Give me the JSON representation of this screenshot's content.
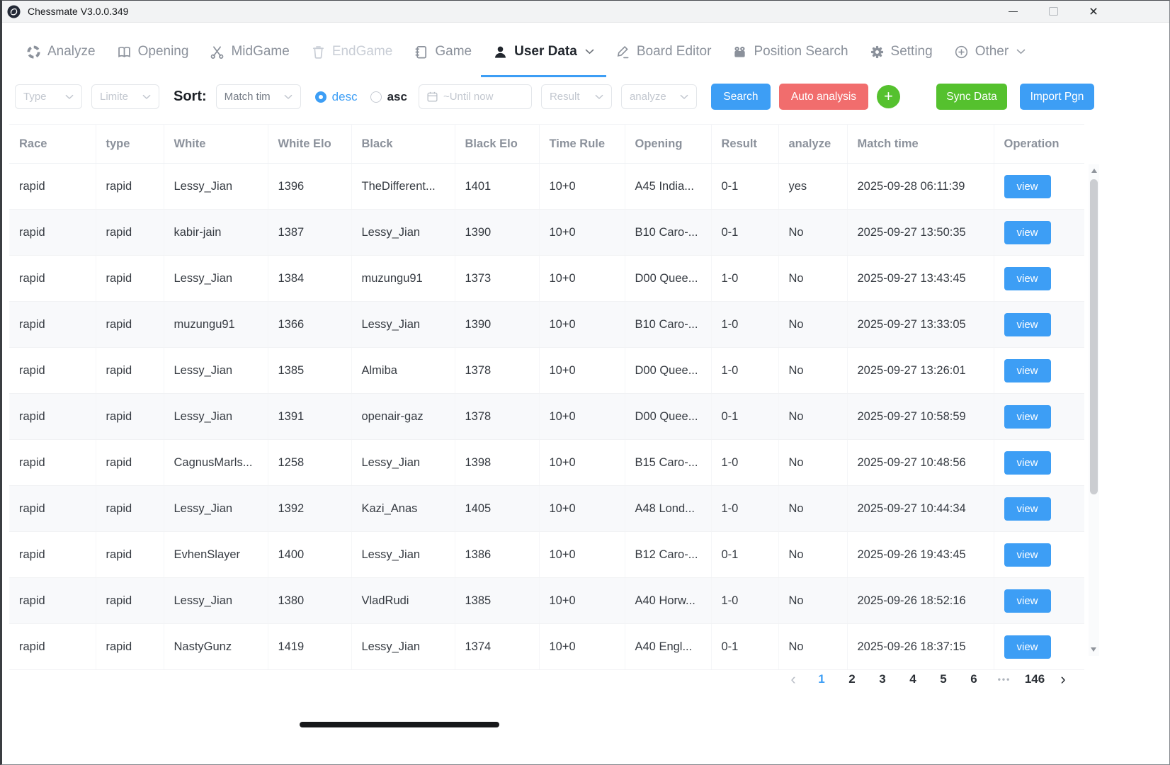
{
  "window": {
    "title": "Chessmate V3.0.0.349",
    "controls": {
      "minimize": "minimize",
      "maximize": "maximize",
      "close": "×"
    }
  },
  "nav": {
    "tabs": [
      {
        "label": "Analyze",
        "state": "normal"
      },
      {
        "label": "Opening",
        "state": "normal"
      },
      {
        "label": "MidGame",
        "state": "normal"
      },
      {
        "label": "EndGame",
        "state": "disabled"
      },
      {
        "label": "Game",
        "state": "normal"
      },
      {
        "label": "User Data",
        "state": "active"
      },
      {
        "label": "Board Editor",
        "state": "normal"
      },
      {
        "label": "Position Search",
        "state": "normal"
      },
      {
        "label": "Setting",
        "state": "normal"
      },
      {
        "label": "Other",
        "state": "normal"
      }
    ]
  },
  "filters": {
    "type_placeholder": "Type",
    "limited_placeholder": "Limite",
    "sort_label": "Sort:",
    "sort_field_value": "Match tim",
    "order_desc_label": "desc",
    "order_asc_label": "asc",
    "order_selected": "desc",
    "date_placeholder": "~Until now",
    "result_placeholder": "Result",
    "analyze_placeholder": "analyze",
    "search_button": "Search",
    "auto_analysis_button": "Auto analysis",
    "add_button": "+",
    "sync_button": "Sync Data",
    "import_button": "Import Pgn"
  },
  "table": {
    "columns": [
      "Race",
      "type",
      "White",
      "White Elo",
      "Black",
      "Black Elo",
      "Time Rule",
      "Opening",
      "Result",
      "analyze",
      "Match time",
      "Operation"
    ],
    "view_label": "view",
    "rows": [
      {
        "race": "rapid",
        "type": "rapid",
        "white": "Lessy_Jian",
        "whiteElo": "1396",
        "black": "TheDifferent...",
        "blackElo": "1401",
        "timeRule": "10+0",
        "opening": "A45 India...",
        "result": "0-1",
        "analyze": "yes",
        "matchTime": "2025-09-28 06:11:39"
      },
      {
        "race": "rapid",
        "type": "rapid",
        "white": "kabir-jain",
        "whiteElo": "1387",
        "black": "Lessy_Jian",
        "blackElo": "1390",
        "timeRule": "10+0",
        "opening": "B10 Caro-...",
        "result": "0-1",
        "analyze": "No",
        "matchTime": "2025-09-27 13:50:35"
      },
      {
        "race": "rapid",
        "type": "rapid",
        "white": "Lessy_Jian",
        "whiteElo": "1384",
        "black": "muzungu91",
        "blackElo": "1373",
        "timeRule": "10+0",
        "opening": "D00 Quee...",
        "result": "1-0",
        "analyze": "No",
        "matchTime": "2025-09-27 13:43:45"
      },
      {
        "race": "rapid",
        "type": "rapid",
        "white": "muzungu91",
        "whiteElo": "1366",
        "black": "Lessy_Jian",
        "blackElo": "1390",
        "timeRule": "10+0",
        "opening": "B10 Caro-...",
        "result": "1-0",
        "analyze": "No",
        "matchTime": "2025-09-27 13:33:05"
      },
      {
        "race": "rapid",
        "type": "rapid",
        "white": "Lessy_Jian",
        "whiteElo": "1385",
        "black": "Almiba",
        "blackElo": "1378",
        "timeRule": "10+0",
        "opening": "D00 Quee...",
        "result": "1-0",
        "analyze": "No",
        "matchTime": "2025-09-27 13:26:01"
      },
      {
        "race": "rapid",
        "type": "rapid",
        "white": "Lessy_Jian",
        "whiteElo": "1391",
        "black": "openair-gaz",
        "blackElo": "1378",
        "timeRule": "10+0",
        "opening": "D00 Quee...",
        "result": "0-1",
        "analyze": "No",
        "matchTime": "2025-09-27 10:58:59"
      },
      {
        "race": "rapid",
        "type": "rapid",
        "white": "CagnusMarls...",
        "whiteElo": "1258",
        "black": "Lessy_Jian",
        "blackElo": "1398",
        "timeRule": "10+0",
        "opening": "B15 Caro-...",
        "result": "1-0",
        "analyze": "No",
        "matchTime": "2025-09-27 10:48:56"
      },
      {
        "race": "rapid",
        "type": "rapid",
        "white": "Lessy_Jian",
        "whiteElo": "1392",
        "black": "Kazi_Anas",
        "blackElo": "1405",
        "timeRule": "10+0",
        "opening": "A48 Lond...",
        "result": "1-0",
        "analyze": "No",
        "matchTime": "2025-09-27 10:44:34"
      },
      {
        "race": "rapid",
        "type": "rapid",
        "white": "EvhenSlayer",
        "whiteElo": "1400",
        "black": "Lessy_Jian",
        "blackElo": "1386",
        "timeRule": "10+0",
        "opening": "B12 Caro-...",
        "result": "0-1",
        "analyze": "No",
        "matchTime": "2025-09-26 19:43:45"
      },
      {
        "race": "rapid",
        "type": "rapid",
        "white": "Lessy_Jian",
        "whiteElo": "1380",
        "black": "VladRudi",
        "blackElo": "1385",
        "timeRule": "10+0",
        "opening": "A40 Horw...",
        "result": "1-0",
        "analyze": "No",
        "matchTime": "2025-09-26 18:52:16"
      },
      {
        "race": "rapid",
        "type": "rapid",
        "white": "NastyGunz",
        "whiteElo": "1419",
        "black": "Lessy_Jian",
        "blackElo": "1374",
        "timeRule": "10+0",
        "opening": "A40 Engl...",
        "result": "0-1",
        "analyze": "No",
        "matchTime": "2025-09-26 18:37:15"
      }
    ]
  },
  "pagination": {
    "prev": "‹",
    "next": "›",
    "pages": [
      "1",
      "2",
      "3",
      "4",
      "5",
      "6",
      "•••",
      "146"
    ],
    "active": "1"
  },
  "colors": {
    "accent_blue": "#3d9ef5",
    "danger_red": "#f16d6d",
    "success_green": "#55c12e"
  }
}
